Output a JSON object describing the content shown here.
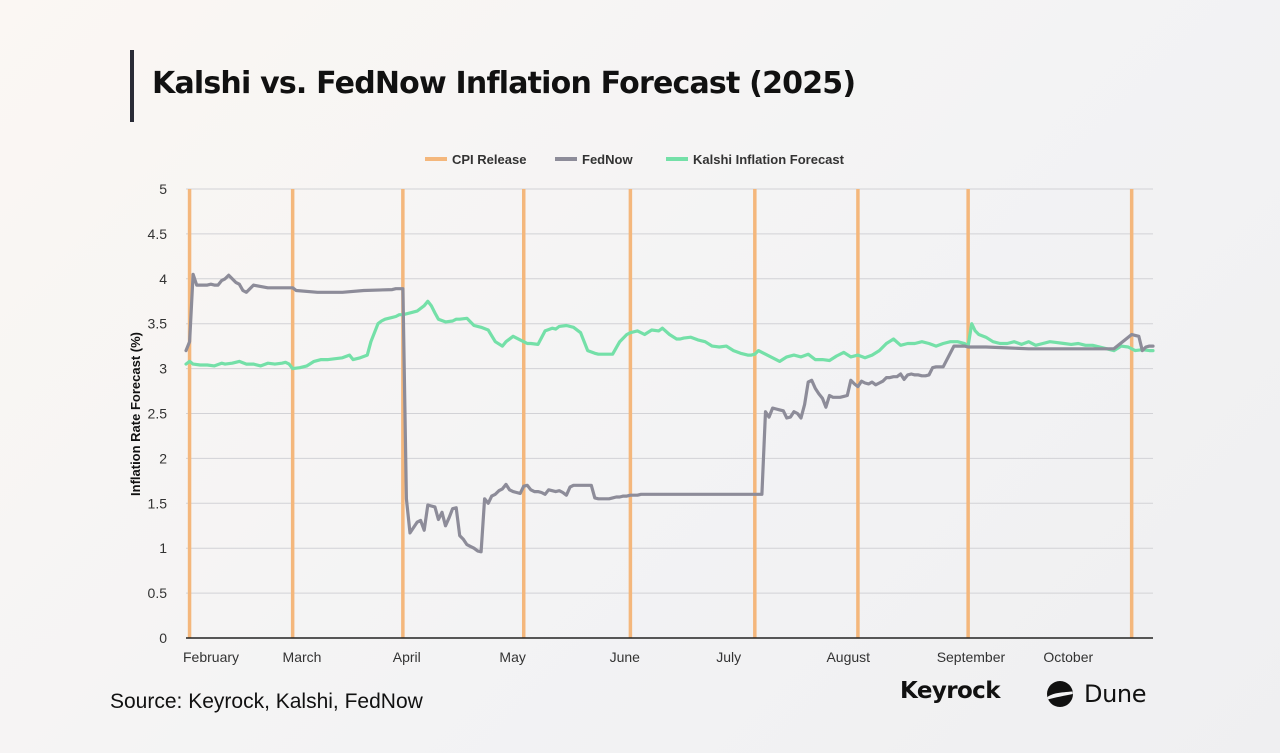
{
  "header": {
    "title": "Kalshi vs. FedNow Inflation Forecast (2025)"
  },
  "footer": {
    "source": "Source: Keyrock, Kalshi, FedNow",
    "logos": [
      {
        "name": "keyrock-logo",
        "text": "Keyrock"
      },
      {
        "name": "dune-logo",
        "text": "Dune",
        "icon": "dune-icon"
      }
    ]
  },
  "colors": {
    "cpi": "#f4b77c",
    "fednow": "#8d8c99",
    "kalshi": "#74e0a8",
    "grid": "#d2d2d6",
    "axis": "#222222"
  },
  "chart_data": {
    "type": "line",
    "title": "",
    "xlabel": "",
    "ylabel": "Inflation Rate Forecast (%)",
    "ylim": [
      0,
      5
    ],
    "yticks": [
      0,
      0.5,
      1,
      1.5,
      2,
      2.5,
      3,
      3.5,
      4,
      4.5,
      5
    ],
    "xlim": [
      "2025-02-01",
      "2025-10-31"
    ],
    "xtick_labels": [
      {
        "label": "February",
        "date": "2025-02-01"
      },
      {
        "label": "March",
        "date": "2025-03-01"
      },
      {
        "label": "April",
        "date": "2025-04-01"
      },
      {
        "label": "May",
        "date": "2025-05-01"
      },
      {
        "label": "June",
        "date": "2025-06-01"
      },
      {
        "label": "July",
        "date": "2025-07-01"
      },
      {
        "label": "August",
        "date": "2025-08-01"
      },
      {
        "label": "September",
        "date": "2025-09-01"
      },
      {
        "label": "October",
        "date": "2025-10-01"
      }
    ],
    "grid": true,
    "legend_position": "top-center",
    "legend": [
      "CPI Release",
      "FedNow",
      "Kalshi Inflation Forecast"
    ],
    "cpi_releases": [
      "2025-02-02",
      "2025-03-03",
      "2025-04-03",
      "2025-05-07",
      "2025-06-06",
      "2025-07-11",
      "2025-08-09",
      "2025-09-09",
      "2025-10-25"
    ],
    "series": [
      {
        "name": "FedNow",
        "x": [
          "2025-02-01",
          "2025-02-02",
          "2025-02-03",
          "2025-02-04",
          "2025-02-07",
          "2025-02-08",
          "2025-02-09",
          "2025-02-10",
          "2025-02-11",
          "2025-02-12",
          "2025-02-13",
          "2025-02-14",
          "2025-02-15",
          "2025-02-16",
          "2025-02-17",
          "2025-02-18",
          "2025-02-20",
          "2025-02-24",
          "2025-03-03",
          "2025-03-04",
          "2025-03-10",
          "2025-03-17",
          "2025-03-23",
          "2025-03-31",
          "2025-04-01",
          "2025-04-02",
          "2025-04-03",
          "2025-04-04",
          "2025-04-05",
          "2025-04-07",
          "2025-04-08",
          "2025-04-09",
          "2025-04-10",
          "2025-04-11",
          "2025-04-12",
          "2025-04-13",
          "2025-04-14",
          "2025-04-15",
          "2025-04-16",
          "2025-04-17",
          "2025-04-18",
          "2025-04-19",
          "2025-04-20",
          "2025-04-21",
          "2025-04-22",
          "2025-04-23",
          "2025-04-24",
          "2025-04-25",
          "2025-04-26",
          "2025-04-27",
          "2025-04-28",
          "2025-04-29",
          "2025-04-30",
          "2025-05-01",
          "2025-05-02",
          "2025-05-03",
          "2025-05-04",
          "2025-05-05",
          "2025-05-06",
          "2025-05-07",
          "2025-05-08",
          "2025-05-09",
          "2025-05-10",
          "2025-05-11",
          "2025-05-12",
          "2025-05-13",
          "2025-05-14",
          "2025-05-15",
          "2025-05-16",
          "2025-05-17",
          "2025-05-18",
          "2025-05-19",
          "2025-05-20",
          "2025-05-21",
          "2025-05-22",
          "2025-05-23",
          "2025-05-24",
          "2025-05-25",
          "2025-05-26",
          "2025-05-27",
          "2025-05-28",
          "2025-05-29",
          "2025-05-30",
          "2025-05-31",
          "2025-06-01",
          "2025-06-02",
          "2025-06-03",
          "2025-06-04",
          "2025-06-05",
          "2025-06-06",
          "2025-06-07",
          "2025-06-08",
          "2025-06-09",
          "2025-06-10",
          "2025-06-11",
          "2025-06-12",
          "2025-06-13",
          "2025-06-14",
          "2025-06-16",
          "2025-06-18",
          "2025-06-20",
          "2025-06-24",
          "2025-06-28",
          "2025-07-02",
          "2025-07-06",
          "2025-07-10",
          "2025-07-11",
          "2025-07-12",
          "2025-07-13",
          "2025-07-14",
          "2025-07-15",
          "2025-07-16",
          "2025-07-17",
          "2025-07-18",
          "2025-07-19",
          "2025-07-20",
          "2025-07-21",
          "2025-07-22",
          "2025-07-23",
          "2025-07-24",
          "2025-07-25",
          "2025-07-26",
          "2025-07-27",
          "2025-07-28",
          "2025-07-29",
          "2025-07-30",
          "2025-07-31",
          "2025-08-01",
          "2025-08-02",
          "2025-08-03",
          "2025-08-04",
          "2025-08-05",
          "2025-08-06",
          "2025-08-07",
          "2025-08-08",
          "2025-08-09",
          "2025-08-10",
          "2025-08-11",
          "2025-08-12",
          "2025-08-13",
          "2025-08-14",
          "2025-08-15",
          "2025-08-16",
          "2025-08-17",
          "2025-08-18",
          "2025-08-19",
          "2025-08-20",
          "2025-08-21",
          "2025-08-22",
          "2025-08-23",
          "2025-08-24",
          "2025-08-25",
          "2025-08-26",
          "2025-08-27",
          "2025-08-28",
          "2025-08-29",
          "2025-08-30",
          "2025-08-31",
          "2025-09-01",
          "2025-09-02",
          "2025-09-05",
          "2025-09-08",
          "2025-09-09",
          "2025-09-10",
          "2025-09-14",
          "2025-09-20",
          "2025-09-26",
          "2025-10-02",
          "2025-10-08",
          "2025-10-14",
          "2025-10-20",
          "2025-10-25",
          "2025-10-26",
          "2025-10-27",
          "2025-10-28",
          "2025-10-29",
          "2025-10-30",
          "2025-10-31"
        ],
        "y": [
          3.2,
          3.3,
          4.05,
          3.93,
          3.93,
          3.94,
          3.93,
          3.93,
          3.98,
          4.0,
          4.04,
          4.0,
          3.96,
          3.94,
          3.87,
          3.85,
          3.93,
          3.9,
          3.9,
          3.87,
          3.85,
          3.85,
          3.87,
          3.88,
          3.89,
          3.89,
          3.89,
          1.55,
          1.17,
          1.29,
          1.31,
          1.2,
          1.48,
          1.47,
          1.46,
          1.32,
          1.4,
          1.25,
          1.34,
          1.44,
          1.45,
          1.14,
          1.1,
          1.04,
          1.02,
          1.0,
          0.97,
          0.96,
          1.55,
          1.5,
          1.58,
          1.6,
          1.64,
          1.66,
          1.71,
          1.65,
          1.63,
          1.62,
          1.61,
          1.69,
          1.7,
          1.65,
          1.63,
          1.63,
          1.62,
          1.6,
          1.65,
          1.64,
          1.63,
          1.64,
          1.62,
          1.59,
          1.68,
          1.7,
          1.7,
          1.7,
          1.7,
          1.7,
          1.7,
          1.56,
          1.55,
          1.55,
          1.55,
          1.55,
          1.56,
          1.57,
          1.57,
          1.58,
          1.58,
          1.59,
          1.59,
          1.59,
          1.6,
          1.6,
          1.6,
          1.6,
          1.6,
          1.6,
          1.6,
          1.6,
          1.6,
          1.6,
          1.6,
          1.6,
          1.6,
          1.6,
          1.6,
          1.6,
          1.6,
          2.52,
          2.46,
          2.56,
          2.55,
          2.54,
          2.53,
          2.45,
          2.46,
          2.52,
          2.5,
          2.45,
          2.6,
          2.85,
          2.87,
          2.78,
          2.72,
          2.67,
          2.57,
          2.7,
          2.68,
          2.68,
          2.68,
          2.69,
          2.7,
          2.87,
          2.83,
          2.8,
          2.86,
          2.84,
          2.83,
          2.85,
          2.82,
          2.84,
          2.86,
          2.9,
          2.9,
          2.91,
          2.91,
          2.94,
          2.88,
          2.93,
          2.94,
          2.93,
          2.93,
          2.92,
          2.92,
          2.93,
          3.01,
          3.02,
          3.02,
          3.02,
          3.25,
          3.25,
          3.24,
          3.24,
          3.24,
          3.23,
          3.22,
          3.22,
          3.22,
          3.22,
          3.22,
          3.38,
          3.37,
          3.36,
          3.2,
          3.24,
          3.25,
          3.25
        ]
      },
      {
        "name": "Kalshi Inflation Forecast",
        "x": [
          "2025-02-01",
          "2025-02-02",
          "2025-02-03",
          "2025-02-05",
          "2025-02-07",
          "2025-02-09",
          "2025-02-11",
          "2025-02-12",
          "2025-02-14",
          "2025-02-16",
          "2025-02-18",
          "2025-02-20",
          "2025-02-22",
          "2025-02-24",
          "2025-02-26",
          "2025-02-28",
          "2025-03-01",
          "2025-03-02",
          "2025-03-03",
          "2025-03-05",
          "2025-03-07",
          "2025-03-09",
          "2025-03-11",
          "2025-03-13",
          "2025-03-15",
          "2025-03-17",
          "2025-03-19",
          "2025-03-20",
          "2025-03-22",
          "2025-03-24",
          "2025-03-25",
          "2025-03-27",
          "2025-03-28",
          "2025-03-29",
          "2025-03-31",
          "2025-04-01",
          "2025-04-02",
          "2025-04-03",
          "2025-04-05",
          "2025-04-07",
          "2025-04-09",
          "2025-04-10",
          "2025-04-11",
          "2025-04-12",
          "2025-04-13",
          "2025-04-15",
          "2025-04-17",
          "2025-04-18",
          "2025-04-19",
          "2025-04-21",
          "2025-04-23",
          "2025-04-25",
          "2025-04-27",
          "2025-04-29",
          "2025-05-01",
          "2025-05-02",
          "2025-05-04",
          "2025-05-06",
          "2025-05-07",
          "2025-05-08",
          "2025-05-09",
          "2025-05-11",
          "2025-05-13",
          "2025-05-15",
          "2025-05-16",
          "2025-05-17",
          "2025-05-19",
          "2025-05-21",
          "2025-05-23",
          "2025-05-25",
          "2025-05-27",
          "2025-05-28",
          "2025-05-30",
          "2025-06-01",
          "2025-06-03",
          "2025-06-05",
          "2025-06-06",
          "2025-06-08",
          "2025-06-10",
          "2025-06-12",
          "2025-06-14",
          "2025-06-15",
          "2025-06-17",
          "2025-06-19",
          "2025-06-20",
          "2025-06-21",
          "2025-06-23",
          "2025-06-25",
          "2025-06-27",
          "2025-06-29",
          "2025-07-01",
          "2025-07-03",
          "2025-07-05",
          "2025-07-07",
          "2025-07-09",
          "2025-07-10",
          "2025-07-11",
          "2025-07-12",
          "2025-07-14",
          "2025-07-16",
          "2025-07-18",
          "2025-07-20",
          "2025-07-22",
          "2025-07-24",
          "2025-07-26",
          "2025-07-28",
          "2025-07-30",
          "2025-08-01",
          "2025-08-03",
          "2025-08-05",
          "2025-08-07",
          "2025-08-09",
          "2025-08-11",
          "2025-08-13",
          "2025-08-15",
          "2025-08-17",
          "2025-08-19",
          "2025-08-21",
          "2025-08-23",
          "2025-08-25",
          "2025-08-27",
          "2025-08-29",
          "2025-08-31",
          "2025-09-02",
          "2025-09-04",
          "2025-09-06",
          "2025-09-08",
          "2025-09-09",
          "2025-09-10",
          "2025-09-11",
          "2025-09-12",
          "2025-09-14",
          "2025-09-16",
          "2025-09-18",
          "2025-09-20",
          "2025-09-22",
          "2025-09-24",
          "2025-09-26",
          "2025-09-28",
          "2025-09-30",
          "2025-10-02",
          "2025-10-04",
          "2025-10-06",
          "2025-10-08",
          "2025-10-10",
          "2025-10-12",
          "2025-10-14",
          "2025-10-16",
          "2025-10-18",
          "2025-10-20",
          "2025-10-22",
          "2025-10-24",
          "2025-10-26",
          "2025-10-28",
          "2025-10-30",
          "2025-10-31"
        ],
        "y": [
          3.05,
          3.08,
          3.05,
          3.04,
          3.04,
          3.03,
          3.06,
          3.05,
          3.06,
          3.08,
          3.05,
          3.05,
          3.03,
          3.06,
          3.05,
          3.06,
          3.07,
          3.05,
          3.0,
          3.01,
          3.03,
          3.08,
          3.1,
          3.1,
          3.11,
          3.12,
          3.15,
          3.1,
          3.12,
          3.15,
          3.3,
          3.5,
          3.53,
          3.55,
          3.57,
          3.58,
          3.6,
          3.6,
          3.62,
          3.64,
          3.7,
          3.75,
          3.7,
          3.62,
          3.55,
          3.52,
          3.53,
          3.55,
          3.55,
          3.56,
          3.48,
          3.46,
          3.43,
          3.3,
          3.25,
          3.3,
          3.36,
          3.32,
          3.3,
          3.28,
          3.28,
          3.27,
          3.42,
          3.45,
          3.44,
          3.47,
          3.48,
          3.46,
          3.4,
          3.2,
          3.17,
          3.16,
          3.16,
          3.16,
          3.3,
          3.38,
          3.4,
          3.42,
          3.38,
          3.43,
          3.42,
          3.45,
          3.38,
          3.33,
          3.33,
          3.34,
          3.35,
          3.32,
          3.3,
          3.25,
          3.24,
          3.25,
          3.2,
          3.17,
          3.15,
          3.15,
          3.16,
          3.2,
          3.16,
          3.12,
          3.08,
          3.13,
          3.15,
          3.13,
          3.16,
          3.1,
          3.1,
          3.09,
          3.14,
          3.18,
          3.13,
          3.15,
          3.12,
          3.15,
          3.2,
          3.28,
          3.33,
          3.26,
          3.28,
          3.28,
          3.3,
          3.28,
          3.25,
          3.28,
          3.3,
          3.3,
          3.28,
          3.25,
          3.5,
          3.42,
          3.38,
          3.35,
          3.3,
          3.28,
          3.28,
          3.3,
          3.27,
          3.3,
          3.26,
          3.28,
          3.3,
          3.29,
          3.28,
          3.27,
          3.28,
          3.26,
          3.26,
          3.24,
          3.22,
          3.2,
          3.25,
          3.24,
          3.2,
          3.21,
          3.2,
          3.2
        ]
      }
    ]
  }
}
